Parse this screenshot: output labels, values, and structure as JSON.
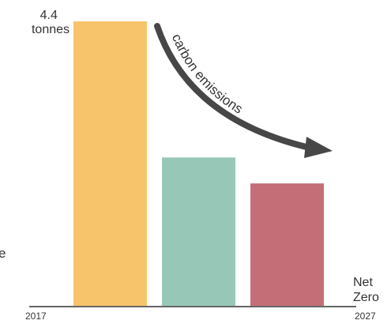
{
  "chart_data": {
    "type": "bar",
    "categories": [
      "",
      "",
      ""
    ],
    "values": [
      4.4,
      2.3,
      1.9
    ],
    "colors": [
      "#f8c46b",
      "#97c7b7",
      "#c46f77"
    ],
    "baseline_color": "#666666",
    "arrow_color": "#474747",
    "ylim": [
      0,
      4.4
    ],
    "top_value_label": {
      "line1": "4.4",
      "line2": "tonnes"
    },
    "x_tick_left": "2017",
    "x_tick_right": "2027",
    "end_label": {
      "line1": "Net",
      "line2": "Zero"
    },
    "arrow_label": "carbon emissions",
    "left_edge_glyph": "e",
    "grid": false,
    "legend": "none"
  }
}
